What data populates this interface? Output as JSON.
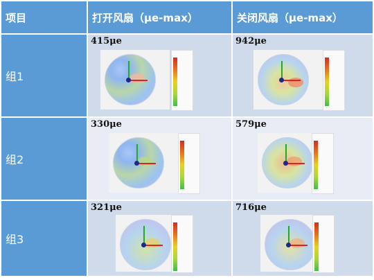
{
  "table": {
    "headers": [
      "项目",
      "打开风扇（μe-max）",
      "关闭风扇（μe-max）"
    ],
    "rows": [
      {
        "label": "组1",
        "open": "415μe",
        "closed": "942μe"
      },
      {
        "label": "组2",
        "open": "330μe",
        "closed": "579μe"
      },
      {
        "label": "组3",
        "open": "321μe",
        "closed": "716μe"
      }
    ]
  },
  "icons": {
    "simulation": "strain-contour-disc-icon",
    "legend": "color-scale-legend-icon"
  },
  "colors": {
    "header_blue": "#5b9bd5",
    "row_light": "#cfdaea",
    "row_lighter": "#e8edf5"
  }
}
